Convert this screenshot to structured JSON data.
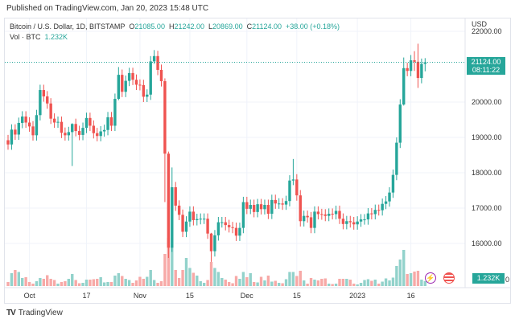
{
  "header": {
    "published": "Published on TradingView.com, Jan 20, 2023 15:48 UTC"
  },
  "legend": {
    "symbol": "Bitcoin / U.S. Dollar, 1D, BITSTAMP",
    "o_label": "O",
    "o": "21085.00",
    "h_label": "H",
    "h": "21242.00",
    "l_label": "L",
    "l": "20869.00",
    "c_label": "C",
    "c": "21124.00",
    "change": "+38.00 (+0.18%)",
    "vol_label": "Vol · BTC",
    "vol": "1.232K"
  },
  "axis": {
    "currency": "USD",
    "price_tag": "21124.00",
    "countdown": "08:11:22",
    "vol_tag": "1.232K",
    "vol_axis_partial": "0"
  },
  "footer": {
    "brand": "TradingView"
  },
  "colors": {
    "up": "#26a69a",
    "down": "#ef5350",
    "vol_up": "#92d2cb",
    "vol_down": "#f7a9a7"
  },
  "chart_data": {
    "type": "candlestick",
    "title": "Bitcoin / U.S. Dollar, 1D, BITSTAMP",
    "start_date": "2022-09-25",
    "first_open": 18920,
    "close": [
      18800,
      19220,
      19080,
      19410,
      19590,
      19420,
      19310,
      19060,
      19630,
      20340,
      20160,
      19960,
      19530,
      19420,
      19440,
      19130,
      19060,
      19150,
      19380,
      19180,
      19070,
      19270,
      19550,
      19330,
      19120,
      19040,
      19170,
      19210,
      19570,
      19330,
      20090,
      20770,
      20290,
      20600,
      20820,
      20630,
      20490,
      20480,
      20150,
      20210,
      21150,
      21300,
      20910,
      20590,
      18540,
      15880,
      17590,
      17070,
      16810,
      16330,
      16620,
      16900,
      16660,
      16690,
      16700,
      16700,
      16280,
      15780,
      16230,
      16600,
      16600,
      16520,
      16460,
      16440,
      16220,
      16440,
      17170,
      16980,
      17090,
      16890,
      17110,
      16970,
      17090,
      16840,
      17230,
      17130,
      17130,
      17100,
      17200,
      17780,
      17810,
      17360,
      16630,
      16780,
      16740,
      16440,
      16900,
      16830,
      16820,
      16780,
      16840,
      16830,
      16920,
      16700,
      16550,
      16630,
      16600,
      16540,
      16620,
      16680,
      16680,
      16850,
      16830,
      16950,
      16940,
      17120,
      17190,
      17440,
      17940,
      18850,
      19930,
      20960,
      20880,
      21180,
      21140,
      20680,
      21080,
      21124
    ],
    "default_wick": 150,
    "wick_overrides": {
      "18": [
        19400,
        18190
      ],
      "31": [
        20990,
        20050
      ],
      "41": [
        21470,
        21080
      ],
      "44": [
        20670,
        17170
      ],
      "45": [
        18600,
        15590
      ],
      "46": [
        18150,
        15760
      ],
      "57": [
        16300,
        15480
      ],
      "80": [
        18390,
        17650
      ],
      "111": [
        21260,
        19900
      ],
      "114": [
        21440,
        20880
      ],
      "115": [
        21650,
        20400
      ],
      "117": [
        21242,
        20869
      ]
    },
    "volume_k": [
      1.0,
      3.2,
      4.0,
      3.5,
      2.0,
      2.2,
      1.0,
      0.6,
      1.2,
      2.0,
      1.8,
      2.7,
      1.8,
      1.5,
      0.6,
      1.0,
      1.2,
      1.8,
      3.0,
      1.5,
      0.7,
      0.8,
      1.6,
      1.6,
      1.7,
      1.8,
      2.2,
      0.9,
      1.0,
      1.0,
      2.6,
      3.2,
      2.5,
      1.8,
      1.5,
      0.8,
      1.4,
      2.3,
      1.8,
      2.3,
      4.0,
      1.5,
      0.8,
      1.2,
      8.0,
      12.0,
      10.0,
      4.0,
      2.0,
      4.0,
      7.0,
      4.5,
      3.3,
      2.6,
      1.2,
      0.8,
      1.5,
      6.0,
      4.5,
      3.5,
      2.0,
      1.6,
      1.0,
      0.7,
      2.5,
      1.8,
      3.5,
      2.2,
      3.2,
      1.0,
      0.9,
      2.3,
      1.4,
      2.6,
      1.1,
      1.3,
      0.8,
      0.7,
      1.7,
      3.5,
      3.5,
      2.5,
      3.8,
      1.4,
      0.6,
      2.0,
      1.6,
      1.4,
      1.8,
      1.9,
      0.6,
      0.5,
      0.6,
      1.8,
      1.8,
      1.8,
      1.6,
      0.6,
      0.4,
      0.8,
      1.5,
      1.7,
      1.3,
      1.6,
      0.6,
      1.1,
      1.9,
      1.4,
      2.1,
      5.0,
      6.6,
      9.0,
      3.0,
      3.2,
      3.6,
      3.8,
      1.6,
      1.232
    ],
    "y_ticks": [
      {
        "v": 22000,
        "label": "22000.00"
      },
      {
        "v": 20000,
        "label": "20000.00"
      },
      {
        "v": 19000,
        "label": "19000.00"
      },
      {
        "v": 18000,
        "label": "18000.00"
      },
      {
        "v": 17000,
        "label": "17000.00"
      },
      {
        "v": 16000,
        "label": "16000.00"
      }
    ],
    "x_ticks": [
      {
        "i": 6,
        "label": "Oct"
      },
      {
        "i": 22,
        "label": "17"
      },
      {
        "i": 37,
        "label": "Nov"
      },
      {
        "i": 51,
        "label": "15"
      },
      {
        "i": 67,
        "label": "Dec"
      },
      {
        "i": 81,
        "label": "15"
      },
      {
        "i": 98,
        "label": "2023"
      },
      {
        "i": 113,
        "label": "16"
      }
    ],
    "last_price": 21124
  }
}
